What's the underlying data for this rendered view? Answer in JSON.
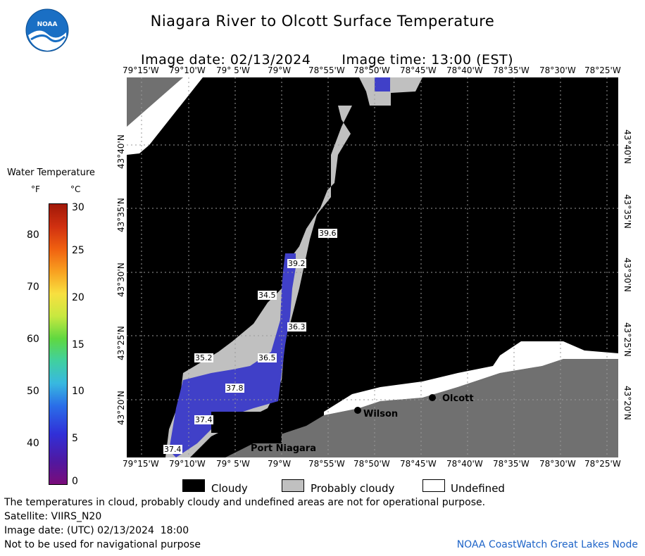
{
  "title": "Niagara River to Olcott Surface Temperature",
  "subtitle_date_label": "Image date: 02/13/2024",
  "subtitle_time_label": "Image time: 13:00 (EST)",
  "logo_text": "NOAA",
  "colorbar": {
    "title": "Water Temperature",
    "unit_f": "°F",
    "unit_c": "°C",
    "f_ticks": [
      "80",
      "70",
      "60",
      "50",
      "40"
    ],
    "c_ticks": [
      "30",
      "25",
      "20",
      "15",
      "10",
      "5",
      "0"
    ]
  },
  "longitude_ticks": [
    "79°15'W",
    "79°10'W",
    "79° 5'W",
    "79°W",
    "78°55'W",
    "78°50'W",
    "78°45'W",
    "78°40'W",
    "78°35'W",
    "78°30'W",
    "78°25'W"
  ],
  "latitude_ticks": [
    "43°40'N",
    "43°35'N",
    "43°30'N",
    "43°25'N",
    "43°20'N"
  ],
  "temperature_labels": [
    "39.6",
    "39.2",
    "34.5",
    "36.3",
    "36.5",
    "35.2",
    "37.8",
    "37.4",
    "37.4"
  ],
  "places": [
    "Olcott",
    "Wilson",
    "Port Niagara"
  ],
  "legend": {
    "cloudy": "Cloudy",
    "probably_cloudy": "Probably cloudy",
    "undefined": "Undefined"
  },
  "colors": {
    "cloudy": "#000000",
    "probably_cloudy": "#c0c0c0",
    "undefined": "#ffffff",
    "land": "#707070",
    "water_cold": "#4040c8"
  },
  "footer": {
    "line1": "The temperatures in cloud, probably cloudy and undefined areas are not for operational purpose.",
    "line2": "Satellite: VIIRS_N20",
    "line3": "Image date: (UTC) 02/13/2024  18:00",
    "line4": "Not to be used for navigational purpose",
    "credit": "NOAA CoastWatch Great Lakes Node"
  }
}
